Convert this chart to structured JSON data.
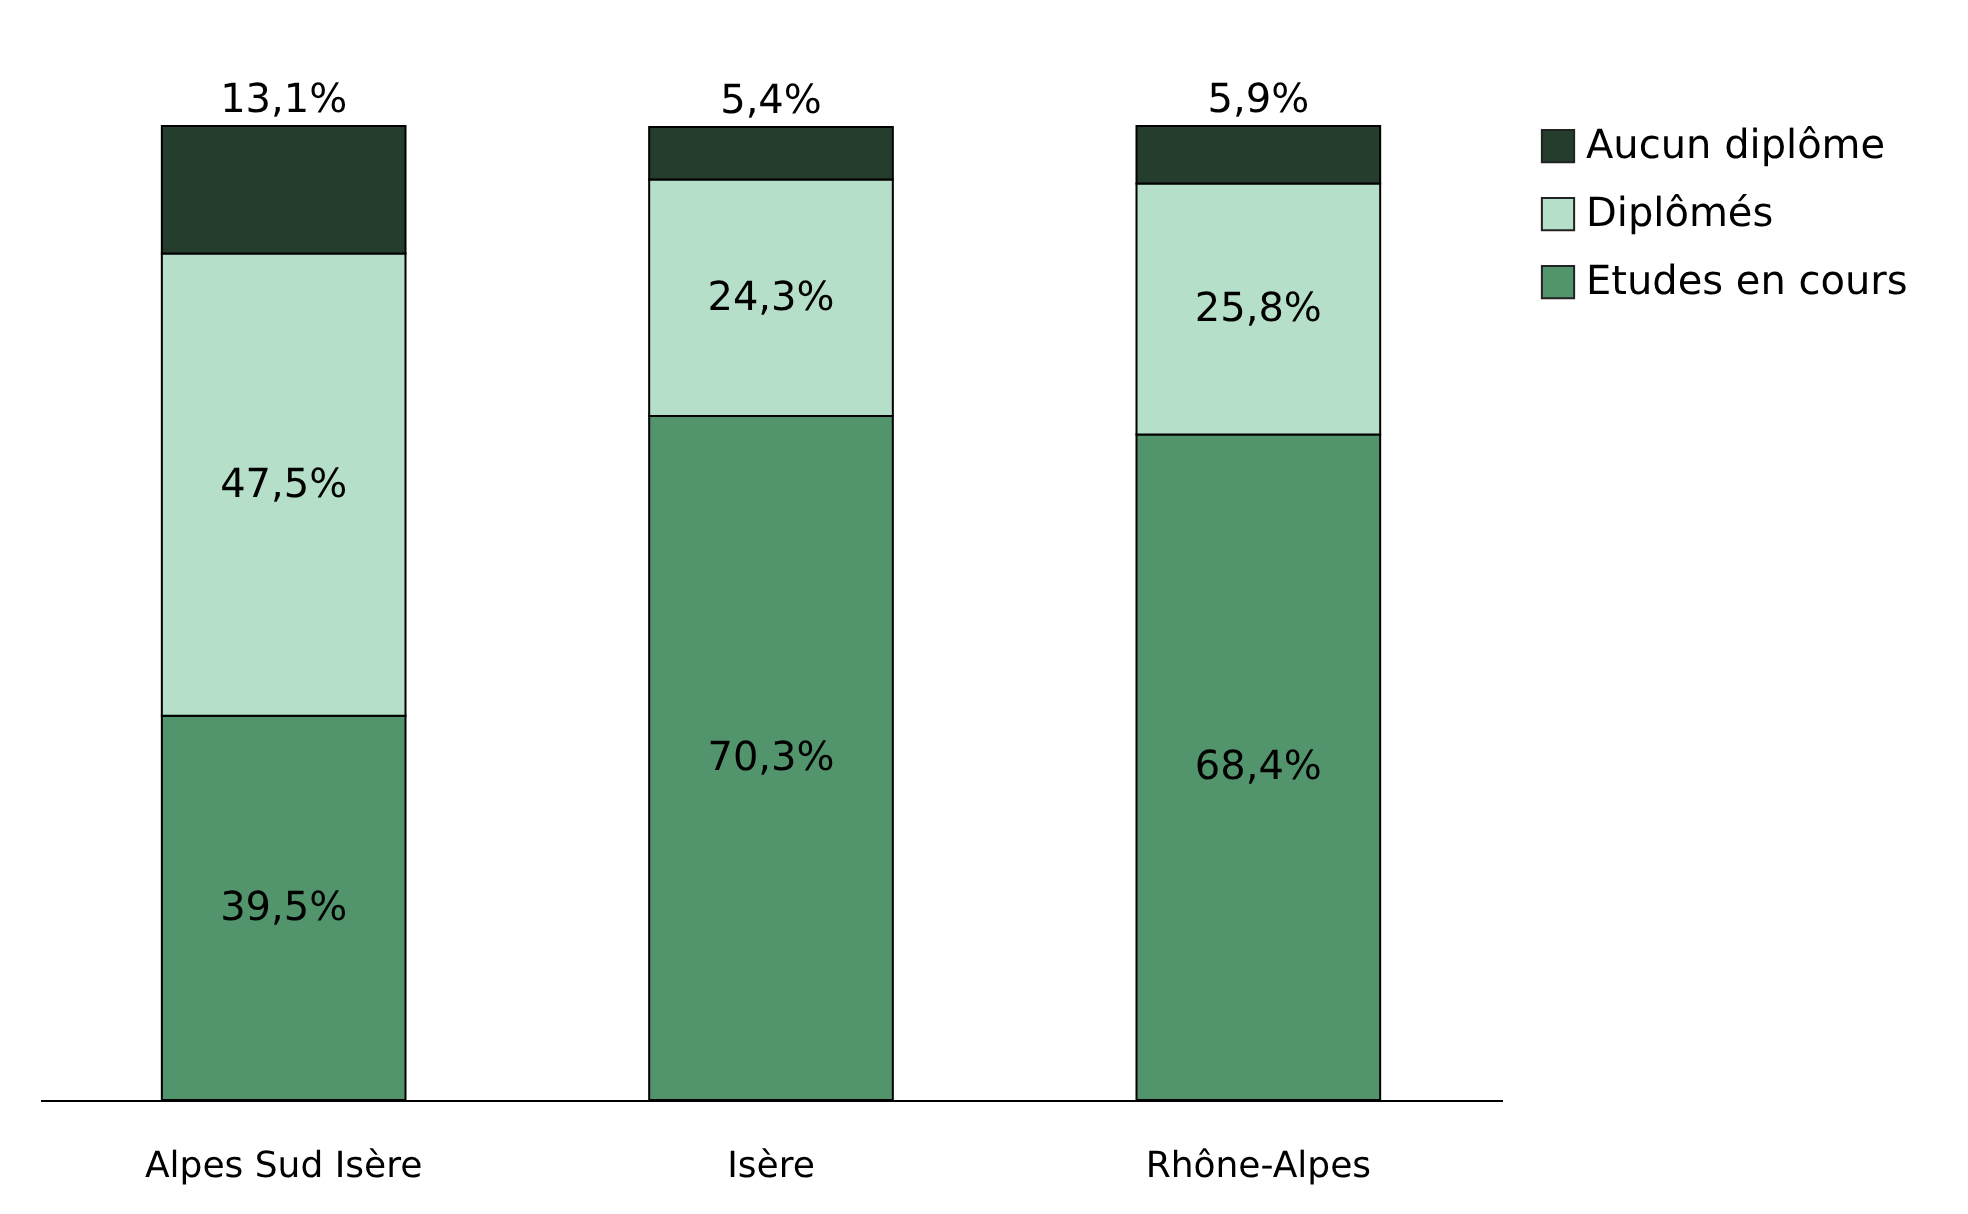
{
  "chart_data": {
    "type": "bar",
    "stacked": true,
    "categories": [
      "Alpes Sud Isère",
      "Isère",
      "Rhône-Alpes"
    ],
    "series": [
      {
        "name": "Etudes en cours",
        "color": "#52946b",
        "values": [
          39.5,
          70.3,
          68.4
        ],
        "value_labels": [
          "39,5%",
          "70,3%",
          "68,4%"
        ]
      },
      {
        "name": "Diplômés",
        "color": "#b5dfc9",
        "values": [
          47.5,
          24.3,
          25.8
        ],
        "value_labels": [
          "47,5%",
          "24,3%",
          "25,8%"
        ]
      },
      {
        "name": "Aucun diplôme",
        "color": "#253d2c",
        "values": [
          13.1,
          5.4,
          5.9
        ],
        "value_labels": [
          "13,1%",
          "5,4%",
          "5,9%"
        ]
      }
    ],
    "tick_labels": "x",
    "legend": "right"
  }
}
